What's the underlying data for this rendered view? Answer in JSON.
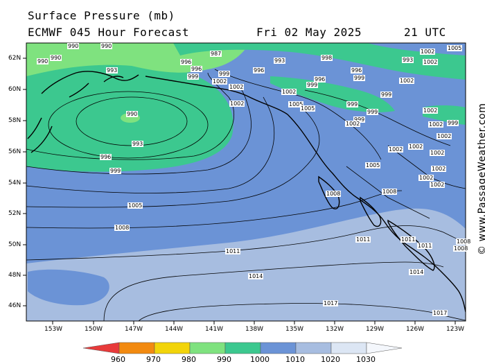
{
  "header": {
    "title": "Surface Pressure (mb)",
    "model": "ECMWF 045 Hour Forecast",
    "date": "Fri 02 May 2025",
    "time": "21 UTC"
  },
  "credit": "© www.PassageWeather.com",
  "lat_labels": [
    "62N",
    "60N",
    "58N",
    "56N",
    "54N",
    "52N",
    "50N",
    "48N",
    "46N"
  ],
  "lon_labels": [
    "153W",
    "150W",
    "147W",
    "144W",
    "141W",
    "138W",
    "135W",
    "132W",
    "129W",
    "126W",
    "123W"
  ],
  "isobar_labels": [
    "990",
    "990",
    "990",
    "990",
    "993",
    "996",
    "996",
    "999",
    "987",
    "999",
    "1002",
    "1002",
    "1002",
    "996",
    "993",
    "998",
    "996",
    "996",
    "999",
    "999",
    "999",
    "1002",
    "1005",
    "1005",
    "999",
    "999",
    "1002",
    "999",
    "1002",
    "1002",
    "999",
    "1002",
    "1002",
    "1005",
    "1002",
    "1002",
    "1002",
    "1002",
    "1002",
    "1002",
    "1005",
    "1008",
    "1008",
    "1011",
    "1011",
    "1011",
    "1008",
    "1008",
    "1008",
    "1011",
    "1014",
    "1014",
    "1017",
    "1017",
    "993",
    "996",
    "999",
    "990",
    "993",
    "1005",
    "1002",
    "1002"
  ],
  "legend": {
    "labels": [
      "960",
      "970",
      "980",
      "990",
      "1000",
      "1010",
      "1020",
      "1030"
    ],
    "colors": [
      "#e83a3a",
      "#f28a10",
      "#f2d40a",
      "#7fe27f",
      "#3cc88f",
      "#6b93d6",
      "#a7bde0",
      "#dce6f4"
    ]
  },
  "fill_colors": {
    "ocean_mid": "#6b93d6",
    "ocean_light": "#a7bde0",
    "low_green": "#3cc88f",
    "land_green": "#7fe27f"
  }
}
